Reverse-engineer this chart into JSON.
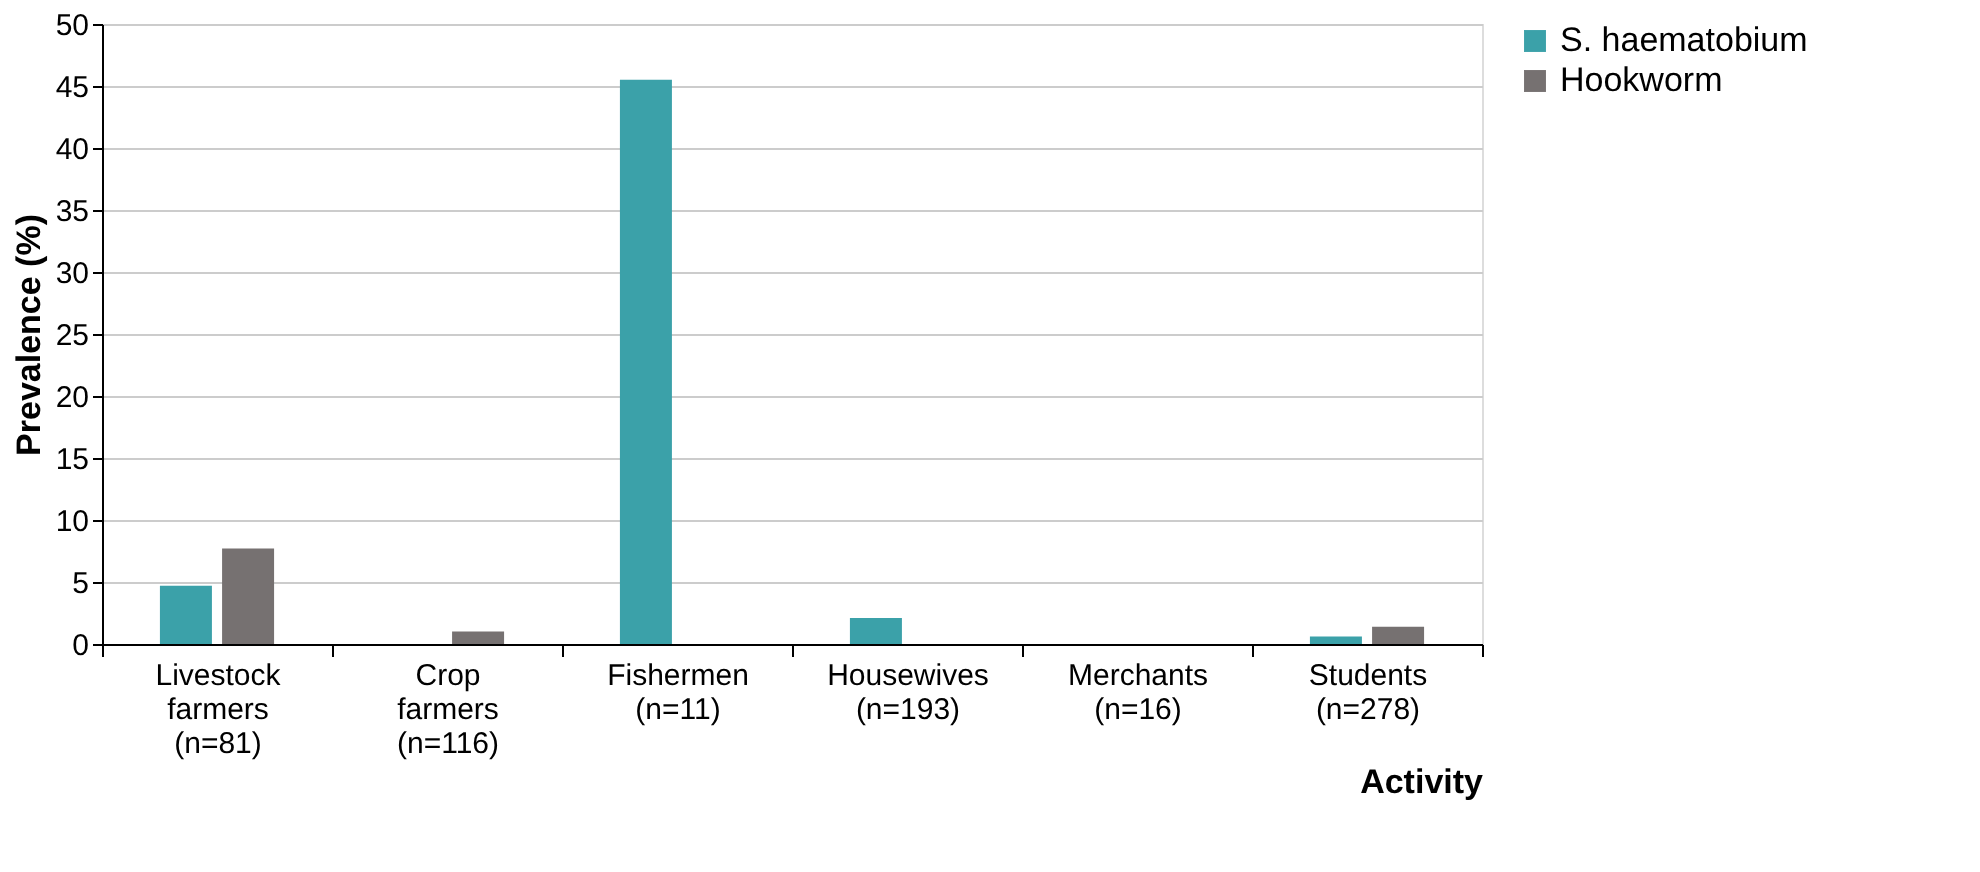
{
  "chart_data": {
    "type": "bar",
    "xlabel": "Activity",
    "ylabel": "Prevalence (%)",
    "categories": [
      "Livestock\nfarmers\n(n=81)",
      "Crop\nfarmers\n(n=116)",
      "Fishermen\n(n=11)",
      "Housewives\n(n=193)",
      "Merchants\n(n=16)",
      "Students\n(n=278)"
    ],
    "series": [
      {
        "name": "S. haematobium",
        "color": "#3ba1a9",
        "values": [
          4.7,
          0,
          45.5,
          2.1,
          0,
          0.6
        ]
      },
      {
        "name": "Hookworm",
        "color": "#767171",
        "values": [
          7.7,
          1.0,
          0,
          0,
          0,
          1.4
        ]
      }
    ],
    "ylim": [
      0,
      50
    ],
    "yticks": [
      0,
      5,
      10,
      15,
      20,
      25,
      30,
      35,
      40,
      45,
      50
    ],
    "grid": "y",
    "legend": "right"
  }
}
